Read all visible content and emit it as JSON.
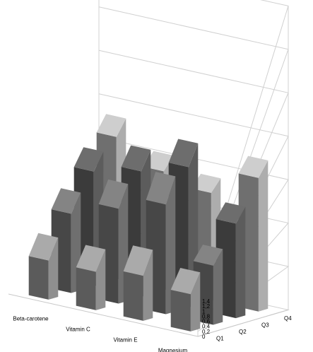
{
  "chart_data": {
    "type": "bar3d",
    "title": "",
    "xlabel": "",
    "ylabel": "",
    "zlabel": "",
    "categories": [
      "Beta-carotene",
      "Vitamin C",
      "Vitamin E",
      "Magnesium"
    ],
    "depth_categories": [
      "Q1",
      "Q2",
      "Q3",
      "Q4"
    ],
    "z_ticks": [
      "0",
      "0,2",
      "0,4",
      "0,6",
      "0,8",
      "1",
      "1,2",
      "1,4"
    ],
    "z_range": [
      0,
      1.4
    ],
    "grid": true,
    "legend": "none",
    "values": [
      [
        1.0,
        0.91,
        0.85,
        0.78
      ],
      [
        0.98,
        1.09,
        0.93,
        0.65
      ],
      [
        1.15,
        1.26,
        1.04,
        0.59
      ],
      [
        0.95,
        0.68,
        0.7,
        0.73
      ]
    ],
    "colors": {
      "Q1": "#757575",
      "Q2": "#5b5b5b",
      "Q3": "#4b4b4b",
      "Q4": "#8e8e8e"
    }
  }
}
